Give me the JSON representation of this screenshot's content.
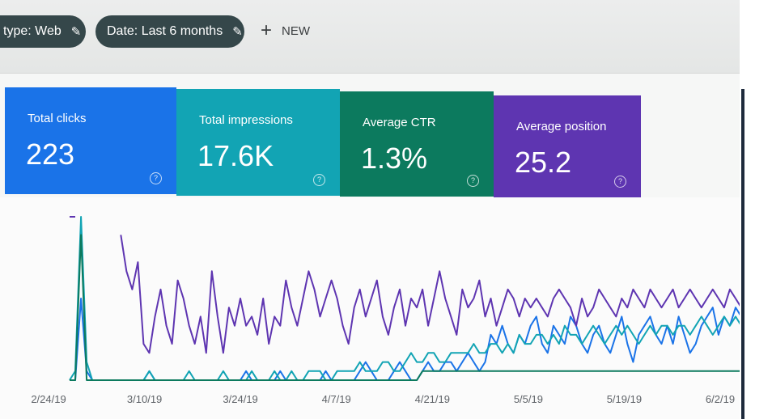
{
  "filters": {
    "type_chip": "type: Web",
    "date_chip": "Date: Last 6 months",
    "new_label": "NEW",
    "pencil_icon": "pencil-icon",
    "plus_icon": "plus-icon"
  },
  "metrics": [
    {
      "label": "Total clicks",
      "value": "223",
      "color": "#1a73e8"
    },
    {
      "label": "Total impressions",
      "value": "17.6K",
      "color": "#12a4b4"
    },
    {
      "label": "Average CTR",
      "value": "1.3%",
      "color": "#0c7a5e"
    },
    {
      "label": "Average position",
      "value": "25.2",
      "color": "#5e35b1"
    }
  ],
  "help_icon": "help-circle-icon",
  "chart_data": {
    "type": "line",
    "x_tick_labels": [
      "2/24/19",
      "3/10/19",
      "3/24/19",
      "4/7/19",
      "4/21/19",
      "5/5/19",
      "5/19/19",
      "6/2/19"
    ],
    "grid": false,
    "series": [
      {
        "color": "#1a73e8",
        "values": [
          0,
          0,
          9,
          1,
          0,
          0,
          0,
          0,
          0,
          0,
          0,
          0,
          0,
          0,
          1,
          0,
          0,
          0,
          0,
          0,
          0,
          0,
          0,
          0,
          0,
          0,
          0,
          0,
          0,
          0,
          0,
          1,
          0,
          0,
          0,
          0,
          0,
          1,
          0,
          0,
          0,
          0,
          0,
          0,
          0,
          1,
          0,
          0,
          0,
          0,
          0,
          1,
          2,
          1,
          0,
          0,
          0,
          1,
          2,
          1,
          0,
          0,
          1,
          2,
          1,
          1,
          2,
          2,
          1,
          2,
          3,
          2,
          1,
          2,
          5,
          4,
          6,
          4,
          3,
          5,
          4,
          6,
          7,
          4,
          3,
          6,
          5,
          4,
          7,
          6,
          4,
          3,
          5,
          6,
          4,
          3,
          5,
          7,
          4,
          2,
          5,
          6,
          7,
          5,
          4,
          6,
          4,
          7,
          5,
          3,
          4,
          6,
          7,
          8,
          5,
          7,
          6,
          8,
          7
        ]
      },
      {
        "color": "#12a4b4",
        "values": [
          0,
          1,
          18,
          2,
          0,
          0,
          0,
          0,
          0,
          0,
          0,
          0,
          0,
          0,
          1,
          0,
          0,
          0,
          0,
          0,
          0,
          1,
          0,
          0,
          0,
          0,
          0,
          1,
          0,
          0,
          0,
          0,
          1,
          0,
          0,
          0,
          1,
          0,
          0,
          1,
          0,
          0,
          1,
          1,
          1,
          0,
          0,
          1,
          1,
          1,
          1,
          2,
          1,
          1,
          1,
          2,
          2,
          1,
          1,
          2,
          3,
          2,
          2,
          3,
          3,
          2,
          2,
          3,
          3,
          3,
          3,
          4,
          3,
          3,
          4,
          4,
          3,
          4,
          3,
          5,
          4,
          4,
          5,
          5,
          4,
          5,
          4,
          6,
          5,
          5,
          4,
          5,
          6,
          5,
          4,
          5,
          6,
          5,
          6,
          5,
          4,
          5,
          6,
          5,
          6,
          6,
          5,
          6,
          6,
          5,
          6,
          7,
          6,
          5,
          6,
          7,
          6,
          7,
          6
        ]
      },
      {
        "color": "#0c7a5e",
        "values": [
          0,
          0,
          16,
          0,
          0,
          0,
          0,
          0,
          0,
          0,
          0,
          0,
          0,
          0,
          0,
          0,
          0,
          0,
          0,
          0,
          0,
          0,
          0,
          0,
          0,
          0,
          0,
          0,
          0,
          0,
          0,
          0,
          0,
          0,
          0,
          0,
          0,
          0,
          0,
          0,
          0,
          0,
          0,
          0,
          0,
          0,
          0,
          0,
          0,
          0,
          0,
          0,
          0,
          0,
          0,
          0,
          0,
          0,
          0,
          0,
          0,
          0,
          1,
          1,
          1,
          1,
          1,
          1,
          1,
          1,
          1,
          1,
          1,
          1,
          1,
          1,
          1,
          1,
          1,
          1,
          1,
          1,
          1,
          1,
          1,
          1,
          1,
          1,
          1,
          1,
          1,
          1,
          1,
          1,
          1,
          1,
          1,
          1,
          1,
          1,
          1,
          1,
          1,
          1,
          1,
          1,
          1,
          1,
          1,
          1,
          1,
          1,
          1,
          1,
          1,
          1,
          1,
          1,
          1
        ]
      },
      {
        "color": "#5e35b1",
        "values": [
          18,
          18,
          null,
          null,
          null,
          null,
          null,
          null,
          null,
          16,
          12,
          10,
          13,
          4,
          3,
          7,
          10,
          6,
          4,
          11,
          9,
          6,
          4,
          7,
          3,
          12,
          7,
          3,
          8,
          6,
          9,
          6,
          7,
          5,
          9,
          4,
          7,
          6,
          11,
          8,
          6,
          9,
          12,
          10,
          7,
          9,
          11,
          9,
          6,
          4,
          8,
          10,
          7,
          9,
          11,
          7,
          5,
          8,
          10,
          6,
          9,
          8,
          10,
          6,
          9,
          12,
          9,
          7,
          5,
          10,
          8,
          9,
          11,
          7,
          9,
          6,
          8,
          10,
          9,
          7,
          9,
          8,
          9,
          8,
          7,
          9,
          10,
          9,
          8,
          6,
          9,
          7,
          8,
          10,
          9,
          8,
          7,
          9,
          8,
          10,
          9,
          8,
          10,
          9,
          8,
          9,
          10,
          8,
          9,
          10,
          9,
          8,
          9,
          10,
          9,
          8,
          10,
          9,
          8
        ]
      }
    ]
  }
}
